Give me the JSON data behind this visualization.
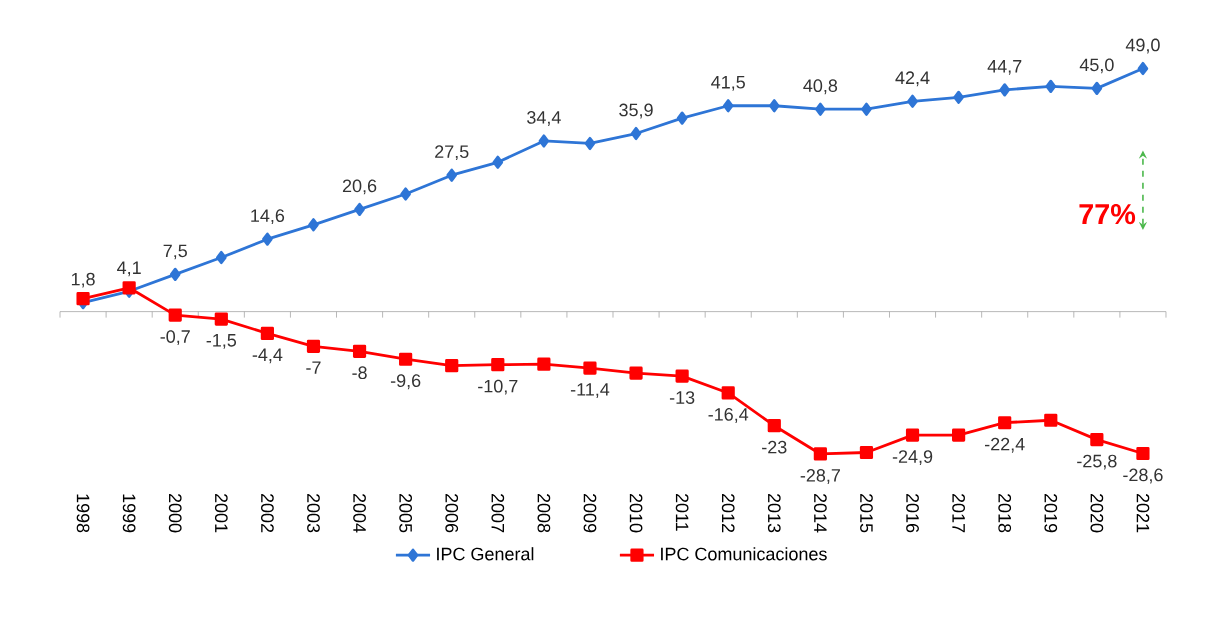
{
  "chart_data": {
    "type": "line",
    "categories": [
      "1998",
      "1999",
      "2000",
      "2001",
      "2002",
      "2003",
      "2004",
      "2005",
      "2006",
      "2007",
      "2008",
      "2009",
      "2010",
      "2011",
      "2012",
      "2013",
      "2014",
      "2015",
      "2016",
      "2017",
      "2018",
      "2019",
      "2020",
      "2021"
    ],
    "series": [
      {
        "name": "IPC General",
        "color": "#2e75d6",
        "marker": "diamond",
        "values": [
          1.8,
          4.1,
          7.5,
          10.9,
          14.6,
          17.5,
          20.6,
          23.7,
          27.5,
          30.1,
          34.4,
          33.9,
          35.9,
          39.0,
          41.5,
          41.5,
          40.8,
          40.8,
          42.4,
          43.2,
          44.7,
          45.4,
          45.0,
          49.0
        ],
        "value_labels": [
          "1,8",
          "4,1",
          "7,5",
          null,
          "14,6",
          null,
          "20,6",
          null,
          "27,5",
          null,
          "34,4",
          null,
          "35,9",
          null,
          "41,5",
          null,
          "40,8",
          null,
          "42,4",
          null,
          "44,7",
          null,
          "45,0",
          "49,0"
        ]
      },
      {
        "name": "IPC Comunicaciones",
        "color": "#ff0000",
        "marker": "square",
        "values": [
          2.6,
          4.8,
          -0.7,
          -1.5,
          -4.4,
          -7,
          -8,
          -9.6,
          -10.9,
          -10.7,
          -10.6,
          -11.4,
          -12.4,
          -13,
          -16.4,
          -23,
          -28.7,
          -28.4,
          -24.9,
          -24.9,
          -22.4,
          -21.9,
          -25.8,
          -28.6
        ],
        "value_labels": [
          null,
          null,
          "-0,7",
          "-1,5",
          "-4,4",
          "-7",
          "-8",
          "-9,6",
          null,
          "-10,7",
          null,
          "-11,4",
          null,
          "-13",
          "-16,4",
          "-23",
          "-28,7",
          null,
          "-24,9",
          null,
          "-22,4",
          null,
          "-25,8",
          "-28,6"
        ]
      }
    ],
    "line_style": "solid",
    "legend": "bottom",
    "annotations": [
      "77%"
    ]
  }
}
